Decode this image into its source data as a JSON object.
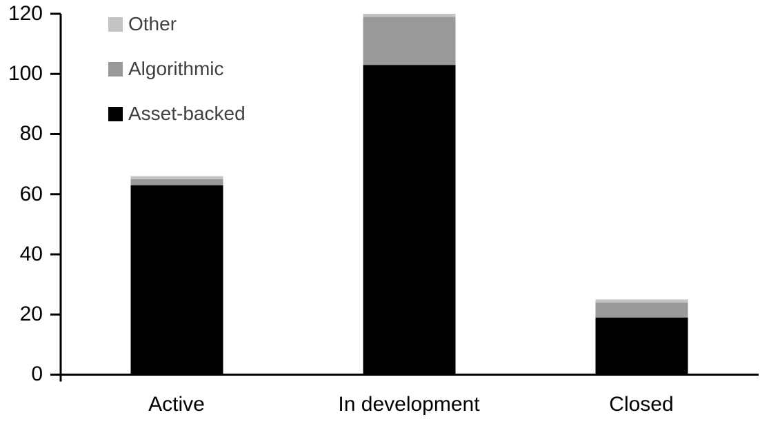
{
  "chart_data": {
    "type": "bar",
    "stacked": true,
    "title": "",
    "xlabel": "",
    "ylabel": "",
    "categories": [
      "Active",
      "In development",
      "Closed"
    ],
    "series": [
      {
        "name": "Asset-backed",
        "color": "#000000",
        "values": [
          63,
          103,
          19
        ]
      },
      {
        "name": "Algorithmic",
        "color": "#999999",
        "values": [
          2,
          16,
          5
        ]
      },
      {
        "name": "Other",
        "color": "#c3c3c3",
        "values": [
          1,
          1,
          1
        ]
      }
    ],
    "totals": [
      66,
      120,
      25
    ],
    "yticks": [
      0,
      20,
      40,
      60,
      80,
      100,
      120
    ],
    "ylim": [
      0,
      120
    ],
    "grid": false,
    "legend_position": "top-left",
    "legend_order_labels": [
      "Other",
      "Algorithmic",
      "Asset-backed"
    ],
    "axis_color": "#000000",
    "background_color": "#ffffff",
    "legend_text_color": "#404040"
  }
}
